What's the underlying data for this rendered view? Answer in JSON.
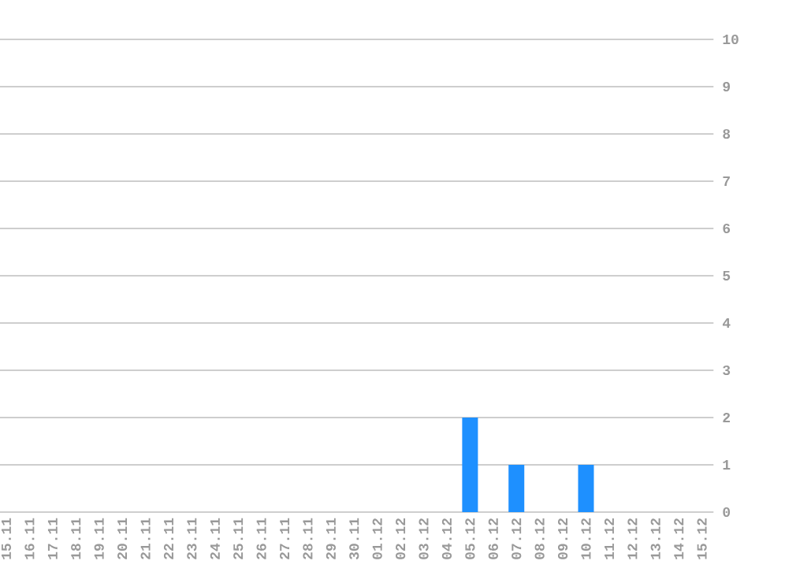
{
  "chart_data": {
    "type": "bar",
    "categories": [
      "15.11",
      "16.11",
      "17.11",
      "18.11",
      "19.11",
      "20.11",
      "21.11",
      "22.11",
      "23.11",
      "24.11",
      "25.11",
      "26.11",
      "27.11",
      "28.11",
      "29.11",
      "30.11",
      "01.12",
      "02.12",
      "03.12",
      "04.12",
      "05.12",
      "06.12",
      "07.12",
      "08.12",
      "09.12",
      "10.12",
      "11.12",
      "12.12",
      "13.12",
      "14.12",
      "15.12"
    ],
    "values": [
      0,
      0,
      0,
      0,
      0,
      0,
      0,
      0,
      0,
      0,
      0,
      0,
      0,
      0,
      0,
      0,
      0,
      0,
      0,
      0,
      2,
      0,
      1,
      0,
      0,
      1,
      0,
      0,
      0,
      0,
      0
    ],
    "color": "#1e90ff",
    "ylim": [
      0,
      10
    ],
    "yticks": [
      0,
      1,
      2,
      3,
      4,
      5,
      6,
      7,
      8,
      9,
      10
    ],
    "grid": "y"
  }
}
